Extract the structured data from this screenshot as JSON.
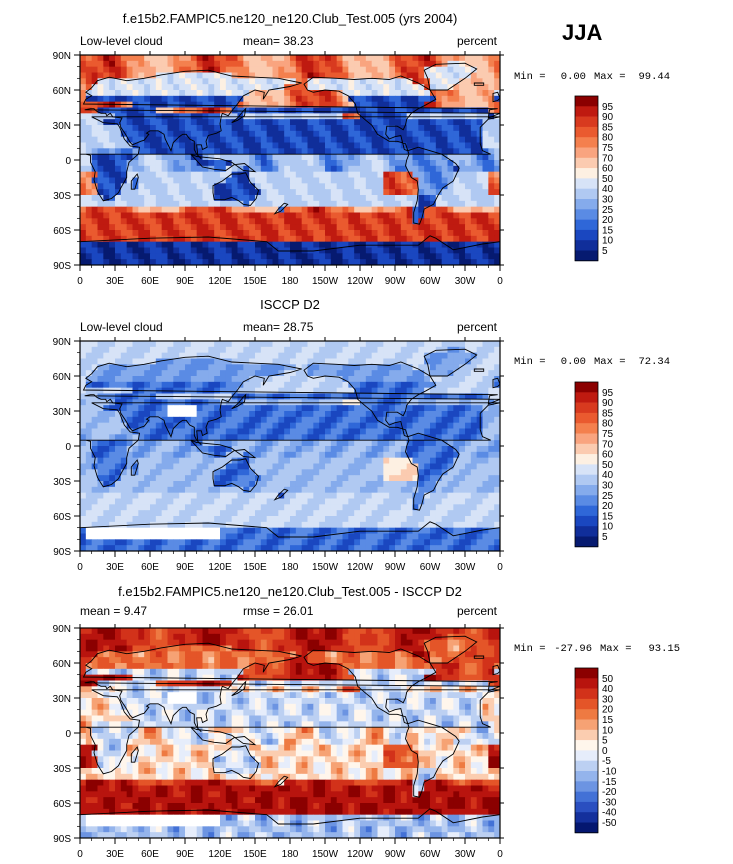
{
  "season": "JJA",
  "chart_data": [
    {
      "type": "heatmap",
      "title": "f.e15b2.FAMPIC5.ne120_ne120.Club_Test.005 (yrs 2004)",
      "variable": "Low-level cloud",
      "stat_left": "mean=  38.23",
      "units": "percent",
      "min_label": "Min =",
      "min": "0.00",
      "max_label": "Max =",
      "max": "99.44",
      "palette": "seq",
      "x_ticks": [
        "0",
        "30E",
        "60E",
        "90E",
        "120E",
        "150E",
        "180",
        "150W",
        "120W",
        "90W",
        "60W",
        "30W",
        "0"
      ],
      "y_ticks": [
        "90N",
        "60N",
        "30N",
        "0",
        "30S",
        "60S",
        "90S"
      ],
      "colorbar": [
        "95",
        "90",
        "85",
        "80",
        "75",
        "70",
        "60",
        "50",
        "40",
        "30",
        "25",
        "20",
        "15",
        "10",
        "5"
      ]
    },
    {
      "type": "heatmap",
      "title": "ISCCP D2",
      "variable": "Low-level cloud",
      "stat_left": "mean=  28.75",
      "units": "percent",
      "min_label": "Min =",
      "min": "0.00",
      "max_label": "Max =",
      "max": "72.34",
      "palette": "seq",
      "x_ticks": [
        "0",
        "30E",
        "60E",
        "90E",
        "120E",
        "150E",
        "180",
        "150W",
        "120W",
        "90W",
        "60W",
        "30W",
        "0"
      ],
      "y_ticks": [
        "90N",
        "60N",
        "30N",
        "0",
        "30S",
        "60S",
        "90S"
      ],
      "colorbar": [
        "95",
        "90",
        "85",
        "80",
        "75",
        "70",
        "60",
        "50",
        "40",
        "30",
        "25",
        "20",
        "15",
        "10",
        "5"
      ]
    },
    {
      "type": "heatmap",
      "title": "f.e15b2.FAMPIC5.ne120_ne120.Club_Test.005 - ISCCP D2",
      "variable": "",
      "stat_left": "mean =   9.47",
      "stat_mid": "rmse =  26.01",
      "units": "percent",
      "min_label": "Min =",
      "min": "-27.96",
      "max_label": "Max =",
      "max": "93.15",
      "palette": "div",
      "x_ticks": [
        "0",
        "30E",
        "60E",
        "90E",
        "120E",
        "150E",
        "180",
        "150W",
        "120W",
        "90W",
        "60W",
        "30W",
        "0"
      ],
      "y_ticks": [
        "90N",
        "60N",
        "30N",
        "0",
        "30S",
        "60S",
        "90S"
      ],
      "colorbar": [
        "50",
        "40",
        "30",
        "20",
        "15",
        "10",
        "5",
        "0",
        "-5",
        "-10",
        "-15",
        "-20",
        "-30",
        "-40",
        "-50"
      ]
    }
  ],
  "palettes": {
    "seq": [
      "#8b0000",
      "#bf1a10",
      "#d83a1f",
      "#ea5a2f",
      "#f4804e",
      "#f9a47f",
      "#fbcbb0",
      "#fdf0e2",
      "#d7e3f7",
      "#b0c9f2",
      "#85abec",
      "#5a8be4",
      "#2f67d8",
      "#1a47c0",
      "#102e9a",
      "#061a70"
    ],
    "div": [
      "#8b0000",
      "#b8140e",
      "#d2321a",
      "#e45528",
      "#ee7a42",
      "#f6a274",
      "#fbcdb0",
      "#fff6ec",
      "#e6edfb",
      "#bcd0f2",
      "#94b4ec",
      "#6c94e2",
      "#4371d6",
      "#2a4fc0",
      "#14309c",
      "#041770"
    ],
    "land_color": "#102e8a",
    "blank": "#ffffff"
  }
}
